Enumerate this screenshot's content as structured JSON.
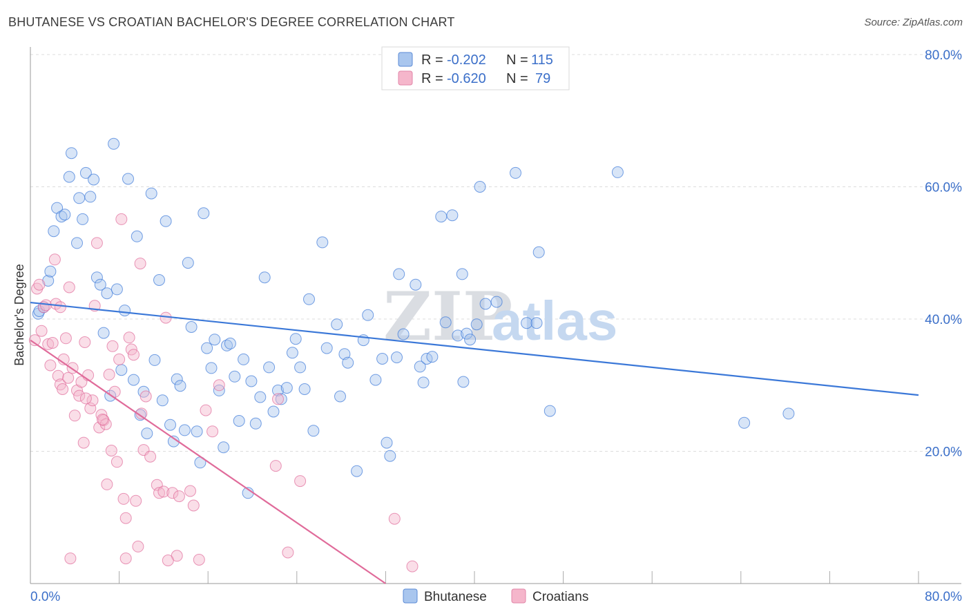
{
  "title": "BHUTANESE VS CROATIAN BACHELOR'S DEGREE CORRELATION CHART",
  "source": "Source: ZipAtlas.com",
  "watermark": {
    "zip": "ZIP",
    "atlas": "atlas"
  },
  "colors": {
    "blue": "#3b78d8",
    "blue_fill": "#a9c6ee",
    "blue_text": "#3b6fc9",
    "pink": "#e06b9a",
    "pink_fill": "#f5b6cb",
    "grid": "#dcdcdc"
  },
  "legend_top": [
    {
      "r_label": "R =",
      "r_value": "-0.202",
      "n_label": "N =",
      "n_value": "115"
    },
    {
      "r_label": "R =",
      "r_value": "-0.620",
      "n_label": "N =",
      "n_value": "79"
    }
  ],
  "legend_bottom": [
    "Bhutanese",
    "Croatians"
  ],
  "chart_data": {
    "type": "scatter",
    "title": "BHUTANESE VS CROATIAN BACHELOR'S DEGREE CORRELATION CHART",
    "xlabel": "",
    "ylabel": "Bachelor's Degree",
    "xlim": [
      0,
      80
    ],
    "ylim": [
      0,
      80
    ],
    "x_tick_labels": [
      "0.0%",
      "80.0%"
    ],
    "y_ticks": [
      20,
      40,
      60,
      80
    ],
    "y_tick_labels": [
      "20.0%",
      "40.0%",
      "60.0%",
      "80.0%"
    ],
    "series": [
      {
        "name": "Bhutanese",
        "r": -0.202,
        "n": 115,
        "trend": {
          "x": [
            0,
            80
          ],
          "y": [
            42.5,
            28.5
          ]
        },
        "points": [
          [
            0.7,
            40.8
          ],
          [
            0.8,
            41.2
          ],
          [
            1.2,
            41.8
          ],
          [
            1.6,
            45.8
          ],
          [
            1.8,
            47.2
          ],
          [
            2.1,
            53.3
          ],
          [
            2.4,
            56.8
          ],
          [
            2.8,
            55.5
          ],
          [
            3.1,
            55.8
          ],
          [
            3.5,
            61.5
          ],
          [
            3.7,
            65.1
          ],
          [
            4.2,
            51.5
          ],
          [
            4.4,
            58.3
          ],
          [
            4.7,
            55.1
          ],
          [
            5.0,
            62.1
          ],
          [
            5.4,
            58.5
          ],
          [
            5.7,
            61.1
          ],
          [
            6.0,
            46.3
          ],
          [
            6.3,
            45.2
          ],
          [
            6.6,
            37.9
          ],
          [
            6.9,
            43.9
          ],
          [
            7.2,
            28.4
          ],
          [
            7.5,
            66.5
          ],
          [
            7.8,
            44.5
          ],
          [
            8.2,
            32.3
          ],
          [
            8.5,
            41.3
          ],
          [
            8.8,
            61.2
          ],
          [
            9.3,
            30.8
          ],
          [
            9.6,
            52.5
          ],
          [
            9.9,
            25.5
          ],
          [
            10.2,
            29.0
          ],
          [
            10.5,
            22.7
          ],
          [
            10.9,
            59.0
          ],
          [
            11.2,
            33.8
          ],
          [
            11.6,
            45.9
          ],
          [
            11.9,
            27.7
          ],
          [
            12.2,
            54.8
          ],
          [
            12.6,
            24.0
          ],
          [
            12.9,
            21.5
          ],
          [
            13.2,
            30.9
          ],
          [
            13.5,
            29.9
          ],
          [
            13.9,
            23.2
          ],
          [
            14.2,
            48.5
          ],
          [
            14.5,
            38.8
          ],
          [
            15.0,
            23.0
          ],
          [
            15.3,
            18.3
          ],
          [
            15.6,
            56.0
          ],
          [
            15.9,
            35.6
          ],
          [
            16.3,
            32.6
          ],
          [
            16.6,
            36.9
          ],
          [
            17.0,
            29.2
          ],
          [
            17.4,
            20.6
          ],
          [
            17.7,
            36.0
          ],
          [
            18.0,
            36.3
          ],
          [
            18.4,
            31.3
          ],
          [
            18.8,
            24.6
          ],
          [
            19.2,
            33.9
          ],
          [
            19.6,
            13.7
          ],
          [
            19.9,
            30.6
          ],
          [
            20.3,
            24.2
          ],
          [
            20.7,
            28.2
          ],
          [
            21.1,
            46.3
          ],
          [
            21.5,
            32.7
          ],
          [
            21.9,
            26.0
          ],
          [
            22.3,
            29.2
          ],
          [
            22.6,
            27.9
          ],
          [
            23.1,
            29.6
          ],
          [
            23.6,
            34.9
          ],
          [
            23.9,
            37.0
          ],
          [
            24.3,
            32.7
          ],
          [
            24.7,
            29.4
          ],
          [
            25.1,
            43.0
          ],
          [
            25.5,
            23.1
          ],
          [
            26.3,
            51.6
          ],
          [
            26.7,
            35.6
          ],
          [
            27.6,
            39.2
          ],
          [
            27.9,
            28.3
          ],
          [
            28.3,
            34.7
          ],
          [
            28.6,
            33.4
          ],
          [
            29.4,
            17.0
          ],
          [
            30.0,
            36.8
          ],
          [
            30.4,
            40.6
          ],
          [
            31.1,
            30.8
          ],
          [
            31.7,
            34.0
          ],
          [
            32.1,
            21.3
          ],
          [
            32.4,
            19.3
          ],
          [
            33.0,
            34.2
          ],
          [
            33.2,
            46.8
          ],
          [
            33.6,
            37.7
          ],
          [
            34.7,
            45.2
          ],
          [
            35.1,
            32.8
          ],
          [
            35.4,
            30.4
          ],
          [
            35.7,
            34.0
          ],
          [
            36.2,
            34.3
          ],
          [
            37.0,
            55.5
          ],
          [
            37.4,
            39.5
          ],
          [
            38.0,
            55.7
          ],
          [
            38.5,
            37.5
          ],
          [
            38.9,
            46.8
          ],
          [
            39.0,
            30.5
          ],
          [
            39.3,
            37.8
          ],
          [
            39.6,
            36.9
          ],
          [
            40.2,
            39.2
          ],
          [
            40.5,
            60.0
          ],
          [
            41.0,
            42.3
          ],
          [
            42.0,
            42.6
          ],
          [
            43.7,
            62.1
          ],
          [
            44.7,
            39.4
          ],
          [
            45.6,
            39.4
          ],
          [
            45.8,
            50.1
          ],
          [
            46.8,
            26.1
          ],
          [
            52.9,
            62.2
          ],
          [
            64.3,
            24.3
          ],
          [
            68.3,
            25.7
          ]
        ]
      },
      {
        "name": "Croatians",
        "r": -0.62,
        "n": 79,
        "trend": {
          "x": [
            0,
            32
          ],
          "y": [
            36.8,
            0
          ]
        },
        "points": [
          [
            0.4,
            36.8
          ],
          [
            0.6,
            44.6
          ],
          [
            0.8,
            45.2
          ],
          [
            1.0,
            38.2
          ],
          [
            1.2,
            41.8
          ],
          [
            1.4,
            42.1
          ],
          [
            1.6,
            36.2
          ],
          [
            2.0,
            36.4
          ],
          [
            2.2,
            49.0
          ],
          [
            2.3,
            42.3
          ],
          [
            2.5,
            31.4
          ],
          [
            2.7,
            30.1
          ],
          [
            2.9,
            29.4
          ],
          [
            3.0,
            33.9
          ],
          [
            3.2,
            37.1
          ],
          [
            3.4,
            31.1
          ],
          [
            3.5,
            44.8
          ],
          [
            3.8,
            32.6
          ],
          [
            4.0,
            25.4
          ],
          [
            4.2,
            29.2
          ],
          [
            4.4,
            28.4
          ],
          [
            4.6,
            30.5
          ],
          [
            4.8,
            21.3
          ],
          [
            4.9,
            36.5
          ],
          [
            5.2,
            31.5
          ],
          [
            5.4,
            26.5
          ],
          [
            5.6,
            27.7
          ],
          [
            5.8,
            42.0
          ],
          [
            6.0,
            51.5
          ],
          [
            6.2,
            23.6
          ],
          [
            6.4,
            25.5
          ],
          [
            6.6,
            24.7
          ],
          [
            6.8,
            24.1
          ],
          [
            6.9,
            15.0
          ],
          [
            7.1,
            31.6
          ],
          [
            7.3,
            20.1
          ],
          [
            7.4,
            35.9
          ],
          [
            7.6,
            29.0
          ],
          [
            7.8,
            18.4
          ],
          [
            8.0,
            33.9
          ],
          [
            8.2,
            55.1
          ],
          [
            8.4,
            12.8
          ],
          [
            8.6,
            9.9
          ],
          [
            8.9,
            37.2
          ],
          [
            9.1,
            35.4
          ],
          [
            9.3,
            34.6
          ],
          [
            9.5,
            12.5
          ],
          [
            9.7,
            5.6
          ],
          [
            9.9,
            48.4
          ],
          [
            10.0,
            25.7
          ],
          [
            10.2,
            20.2
          ],
          [
            10.4,
            28.3
          ],
          [
            10.8,
            19.2
          ],
          [
            11.4,
            14.9
          ],
          [
            11.6,
            13.7
          ],
          [
            12.0,
            13.9
          ],
          [
            12.2,
            40.2
          ],
          [
            12.8,
            13.7
          ],
          [
            13.2,
            4.2
          ],
          [
            13.4,
            13.2
          ],
          [
            14.4,
            14.0
          ],
          [
            14.7,
            11.8
          ],
          [
            15.2,
            3.6
          ],
          [
            15.8,
            26.2
          ],
          [
            16.4,
            23.0
          ],
          [
            17.0,
            30.0
          ],
          [
            22.1,
            17.8
          ],
          [
            22.3,
            27.9
          ],
          [
            23.2,
            4.7
          ],
          [
            24.3,
            15.5
          ],
          [
            32.8,
            9.8
          ],
          [
            34.4,
            2.6
          ],
          [
            3.6,
            3.8
          ],
          [
            2.7,
            41.8
          ],
          [
            1.8,
            33.0
          ],
          [
            5.0,
            28.0
          ],
          [
            6.5,
            24.8
          ],
          [
            8.6,
            3.8
          ],
          [
            12.4,
            3.5
          ]
        ]
      }
    ]
  }
}
